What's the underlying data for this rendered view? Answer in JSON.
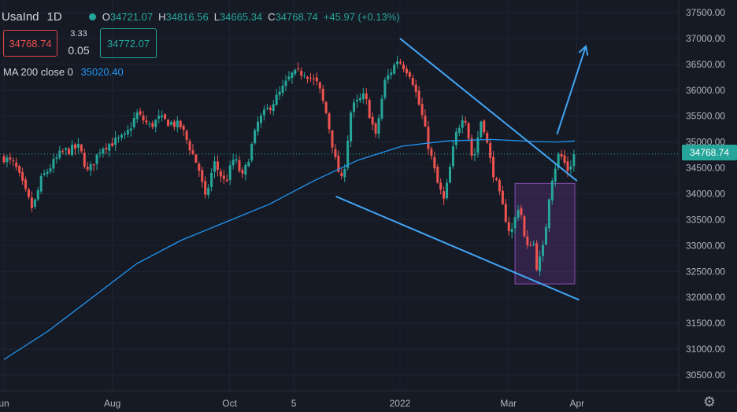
{
  "header": {
    "symbol": "UsaInd",
    "interval": "1D",
    "ohlc": {
      "open_key": "O",
      "open": "34721.07",
      "high_key": "H",
      "high": "34816.56",
      "low_key": "L",
      "low": "34665.34",
      "close_key": "C",
      "close": "34768.74",
      "change": "+45.97 (+0.13%)"
    }
  },
  "trade_panel": {
    "bid": "34768.74",
    "spread_top": "3.33",
    "spread_bottom": "0.05",
    "ask": "34772.07"
  },
  "indicator": {
    "label": "MA 200 close 0",
    "value": "35020.40"
  },
  "price_axis": {
    "ticks": [
      "37500.00",
      "37000.00",
      "36500.00",
      "36000.00",
      "35500.00",
      "35000.00",
      "34500.00",
      "34000.00",
      "33500.00",
      "33000.00",
      "32500.00",
      "32000.00",
      "31500.00",
      "31000.00",
      "30500.00"
    ],
    "last_price_label": "34768.74"
  },
  "time_axis": {
    "labels": [
      "un",
      "Aug",
      "Oct",
      "5",
      "2022",
      "Mar",
      "Apr"
    ]
  },
  "colors": {
    "background": "#161a25",
    "up": "#26a69a",
    "down": "#ef5350",
    "ma": "#2196f3",
    "trendline": "#42a5f5",
    "box": "#7b3fa0"
  },
  "chart_data": {
    "type": "candlestick",
    "title": "",
    "xlabel": "",
    "ylabel": "",
    "ylim": [
      30250,
      37600
    ],
    "x_range_days": [
      0,
      310
    ],
    "x_ticks": [
      {
        "label": "un",
        "day": 0
      },
      {
        "label": "Aug",
        "day": 49
      },
      {
        "label": "Oct",
        "day": 102
      },
      {
        "label": "5",
        "day": 131
      },
      {
        "label": "2022",
        "day": 179
      },
      {
        "label": "Mar",
        "day": 228
      },
      {
        "label": "Apr",
        "day": 259
      }
    ],
    "close_path_keypoints": [
      {
        "day": 0,
        "close": 34700
      },
      {
        "day": 5,
        "close": 34550
      },
      {
        "day": 10,
        "close": 34000
      },
      {
        "day": 13,
        "close": 33700
      },
      {
        "day": 17,
        "close": 34300
      },
      {
        "day": 26,
        "close": 34800
      },
      {
        "day": 34,
        "close": 34900
      },
      {
        "day": 38,
        "close": 34400
      },
      {
        "day": 44,
        "close": 34900
      },
      {
        "day": 55,
        "close": 35100
      },
      {
        "day": 60,
        "close": 35550
      },
      {
        "day": 66,
        "close": 35300
      },
      {
        "day": 70,
        "close": 35450
      },
      {
        "day": 80,
        "close": 35300
      },
      {
        "day": 88,
        "close": 34500
      },
      {
        "day": 91,
        "close": 33900
      },
      {
        "day": 95,
        "close": 34600
      },
      {
        "day": 100,
        "close": 34200
      },
      {
        "day": 104,
        "close": 34700
      },
      {
        "day": 108,
        "close": 34300
      },
      {
        "day": 115,
        "close": 35400
      },
      {
        "day": 124,
        "close": 35900
      },
      {
        "day": 130,
        "close": 36300
      },
      {
        "day": 136,
        "close": 36350
      },
      {
        "day": 142,
        "close": 36100
      },
      {
        "day": 146,
        "close": 35500
      },
      {
        "day": 150,
        "close": 34600
      },
      {
        "day": 153,
        "close": 34200
      },
      {
        "day": 157,
        "close": 35650
      },
      {
        "day": 163,
        "close": 35900
      },
      {
        "day": 168,
        "close": 35100
      },
      {
        "day": 172,
        "close": 36150
      },
      {
        "day": 178,
        "close": 36600
      },
      {
        "day": 184,
        "close": 36300
      },
      {
        "day": 189,
        "close": 35500
      },
      {
        "day": 192,
        "close": 34900
      },
      {
        "day": 196,
        "close": 34200
      },
      {
        "day": 199,
        "close": 33850
      },
      {
        "day": 204,
        "close": 35100
      },
      {
        "day": 208,
        "close": 35600
      },
      {
        "day": 212,
        "close": 34600
      },
      {
        "day": 216,
        "close": 35500
      },
      {
        "day": 220,
        "close": 34600
      },
      {
        "day": 225,
        "close": 33800
      },
      {
        "day": 229,
        "close": 33200
      },
      {
        "day": 233,
        "close": 33850
      },
      {
        "day": 236,
        "close": 32900
      },
      {
        "day": 239,
        "close": 33150
      },
      {
        "day": 241,
        "close": 32550
      },
      {
        "day": 244,
        "close": 33000
      },
      {
        "day": 247,
        "close": 34200
      },
      {
        "day": 251,
        "close": 34800
      },
      {
        "day": 255,
        "close": 34450
      },
      {
        "day": 258,
        "close": 34770
      }
    ],
    "last_close": 34768.74,
    "series": [
      {
        "name": "MA 200 close 0",
        "type": "line",
        "points": [
          {
            "day": 0,
            "y": 30800
          },
          {
            "day": 20,
            "y": 31350
          },
          {
            "day": 40,
            "y": 32000
          },
          {
            "day": 60,
            "y": 32650
          },
          {
            "day": 80,
            "y": 33100
          },
          {
            "day": 100,
            "y": 33450
          },
          {
            "day": 120,
            "y": 33800
          },
          {
            "day": 140,
            "y": 34250
          },
          {
            "day": 160,
            "y": 34650
          },
          {
            "day": 180,
            "y": 34920
          },
          {
            "day": 200,
            "y": 35020
          },
          {
            "day": 220,
            "y": 35050
          },
          {
            "day": 240,
            "y": 35010
          },
          {
            "day": 250,
            "y": 35000
          },
          {
            "day": 258,
            "y": 35020
          }
        ]
      }
    ],
    "drawings": {
      "upper_trendline": [
        {
          "day": 179,
          "y": 37000
        },
        {
          "day": 259,
          "y": 34250
        }
      ],
      "lower_trendline": [
        {
          "day": 150,
          "y": 33950
        },
        {
          "day": 260,
          "y": 31950
        }
      ],
      "projection_arrow": [
        {
          "day": 250,
          "y": 35150
        },
        {
          "day": 263,
          "y": 36850
        }
      ],
      "highlight_box": {
        "day_start": 231,
        "day_end": 258,
        "y_low": 32260,
        "y_high": 34200
      }
    }
  }
}
